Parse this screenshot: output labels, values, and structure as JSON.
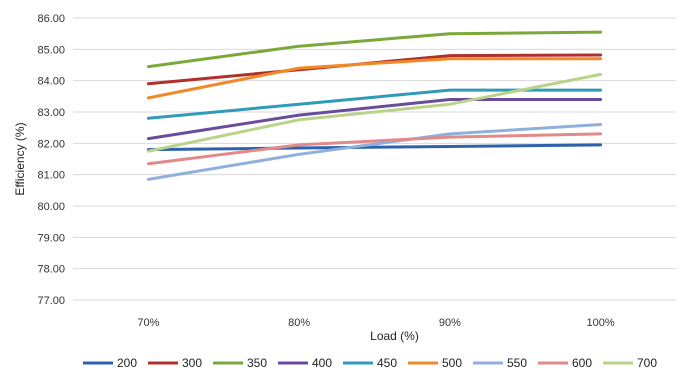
{
  "chart_data": {
    "type": "line",
    "title": "",
    "xlabel": "Load (%)",
    "ylabel": "Efficiency (%)",
    "categories": [
      "70%",
      "80%",
      "90%",
      "100%"
    ],
    "ylim": [
      77.0,
      86.0
    ],
    "ytick_step": 1,
    "yticks": [
      "77.00",
      "78.00",
      "79.00",
      "80.00",
      "81.00",
      "82.00",
      "83.00",
      "84.00",
      "85.00",
      "86.00"
    ],
    "grid": true,
    "legend_position": "bottom",
    "series": [
      {
        "name": "200",
        "color": "#2e62ad",
        "values": [
          81.8,
          81.85,
          81.9,
          81.95
        ]
      },
      {
        "name": "300",
        "color": "#b0302c",
        "values": [
          83.9,
          84.35,
          84.8,
          84.82
        ]
      },
      {
        "name": "350",
        "color": "#7aa83a",
        "values": [
          84.45,
          85.1,
          85.5,
          85.55
        ]
      },
      {
        "name": "400",
        "color": "#6a4c9c",
        "values": [
          82.15,
          82.9,
          83.4,
          83.4
        ]
      },
      {
        "name": "450",
        "color": "#2f9bb8",
        "values": [
          82.8,
          83.25,
          83.7,
          83.7
        ]
      },
      {
        "name": "500",
        "color": "#f08a28",
        "values": [
          83.45,
          84.4,
          84.7,
          84.7
        ]
      },
      {
        "name": "550",
        "color": "#8fb0dc",
        "values": [
          80.85,
          81.65,
          82.3,
          82.6
        ]
      },
      {
        "name": "600",
        "color": "#e08a8a",
        "values": [
          81.35,
          81.95,
          82.2,
          82.3
        ]
      },
      {
        "name": "700",
        "color": "#b9d48a",
        "values": [
          81.75,
          82.75,
          83.25,
          84.2
        ]
      }
    ]
  }
}
